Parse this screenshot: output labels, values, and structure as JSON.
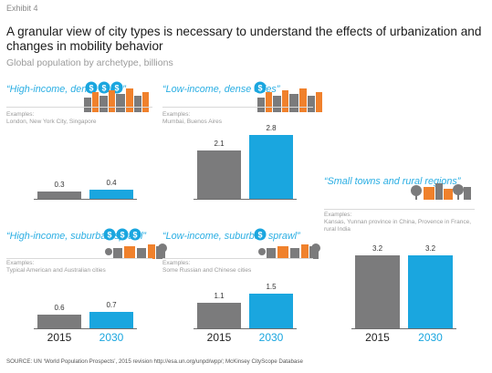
{
  "header": {
    "exhibit": "Exhibit 4",
    "title": "A granular view of city types is necessary to understand the effects of urbanization and changes in mobility behavior",
    "subtitle": "Global population by archetype, billions"
  },
  "colors": {
    "year2015": "#7b7b7c",
    "year2030": "#1aa6df",
    "title_accent": "#2aaee3"
  },
  "icons": [
    "dollar-coins-city-icon",
    "dollar-coin-city-icon",
    "dollar-coins-suburb-icon",
    "dollar-coin-suburb-icon",
    "small-town-icon"
  ],
  "years": [
    "2015",
    "2030"
  ],
  "examples_label": "Examples:",
  "chart_data": {
    "type": "bar",
    "categories": [
      "2015",
      "2030"
    ],
    "unit": "billions",
    "panels": [
      {
        "title": "“High-income, dense cities”",
        "examples": "London, New York City, Singapore",
        "values": [
          0.3,
          0.4
        ],
        "labels": [
          "0.3",
          "0.4"
        ]
      },
      {
        "title": "“Low-income, dense cities”",
        "examples": "Mumbai, Buenos Aires",
        "values": [
          2.1,
          2.8
        ],
        "labels": [
          "2.1",
          "2.8"
        ]
      },
      {
        "title": "“High-income, suburban sprawl”",
        "examples": "Typical American and Australian cities",
        "values": [
          0.6,
          0.7
        ],
        "labels": [
          "0.6",
          "0.7"
        ]
      },
      {
        "title": "“Low-income, suburban sprawl”",
        "examples": "Some Russian and Chinese cities",
        "values": [
          1.1,
          1.5
        ],
        "labels": [
          "1.1",
          "1.5"
        ]
      },
      {
        "title": "“Small towns and rural regions”",
        "examples": "Kansas, Yunnan province in China, Provence in France, rural India",
        "values": [
          3.2,
          3.2
        ],
        "labels": [
          "3.2",
          "3.2"
        ]
      }
    ]
  },
  "source": "SOURCE: UN ‘World Population Prospects’, 2015 revision http://esa.un.org/unpd/wpp/; McKinsey CityScope Database"
}
